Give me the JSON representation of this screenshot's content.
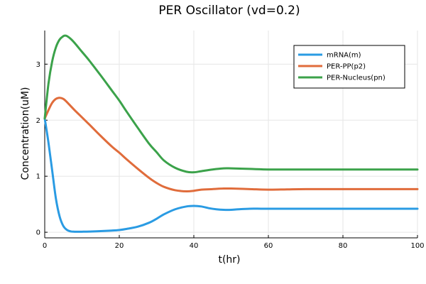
{
  "chart_data": {
    "type": "line",
    "title": "PER Oscillator (vd=0.2)",
    "xlabel": "t(hr)",
    "ylabel": "Concentration(uM)",
    "xlim": [
      0,
      100
    ],
    "ylim": [
      -0.1,
      3.6
    ],
    "xticks": [
      0,
      20,
      40,
      60,
      80,
      100
    ],
    "yticks": [
      0,
      1,
      2,
      3
    ],
    "grid": true,
    "legend_position": "top-right",
    "series": [
      {
        "name": "mRNA(m)",
        "color": "#2a9be3",
        "x": [
          0,
          1,
          2,
          3,
          4,
          5,
          6,
          7,
          8,
          10,
          12,
          15,
          18,
          20,
          22,
          25,
          28,
          30,
          32,
          35,
          38,
          40,
          42,
          44,
          46,
          48,
          50,
          52,
          55,
          58,
          60,
          65,
          70,
          80,
          90,
          100
        ],
        "y": [
          2.03,
          1.6,
          1.1,
          0.6,
          0.28,
          0.11,
          0.04,
          0.015,
          0.01,
          0.01,
          0.012,
          0.02,
          0.03,
          0.04,
          0.06,
          0.1,
          0.17,
          0.24,
          0.32,
          0.41,
          0.46,
          0.47,
          0.46,
          0.43,
          0.41,
          0.4,
          0.4,
          0.41,
          0.42,
          0.42,
          0.42,
          0.42,
          0.42,
          0.42,
          0.42,
          0.42
        ]
      },
      {
        "name": "PER-PP(p2)",
        "color": "#e06c3b",
        "x": [
          0,
          1,
          2,
          3,
          4,
          5,
          6,
          7,
          8,
          10,
          12,
          15,
          18,
          20,
          22,
          25,
          28,
          30,
          32,
          35,
          38,
          40,
          42,
          45,
          48,
          50,
          55,
          60,
          65,
          70,
          80,
          90,
          100
        ],
        "y": [
          2.03,
          2.18,
          2.31,
          2.38,
          2.4,
          2.38,
          2.32,
          2.25,
          2.18,
          2.05,
          1.92,
          1.72,
          1.53,
          1.42,
          1.3,
          1.13,
          0.97,
          0.88,
          0.81,
          0.75,
          0.73,
          0.74,
          0.76,
          0.77,
          0.78,
          0.78,
          0.77,
          0.76,
          0.765,
          0.77,
          0.77,
          0.77,
          0.77
        ]
      },
      {
        "name": "PER-Nucleus(pn)",
        "color": "#3ba24a",
        "x": [
          0,
          1,
          2,
          3,
          4,
          5,
          5.5,
          6,
          7,
          8,
          10,
          12,
          15,
          18,
          20,
          22,
          25,
          28,
          30,
          32,
          35,
          38,
          40,
          42,
          45,
          48,
          50,
          55,
          60,
          65,
          70,
          80,
          90,
          100
        ],
        "y": [
          2.03,
          2.65,
          3.05,
          3.3,
          3.44,
          3.5,
          3.51,
          3.5,
          3.45,
          3.38,
          3.22,
          3.06,
          2.8,
          2.53,
          2.35,
          2.15,
          1.86,
          1.58,
          1.43,
          1.28,
          1.15,
          1.08,
          1.07,
          1.09,
          1.12,
          1.14,
          1.14,
          1.13,
          1.12,
          1.12,
          1.12,
          1.12,
          1.12,
          1.12
        ]
      }
    ]
  }
}
